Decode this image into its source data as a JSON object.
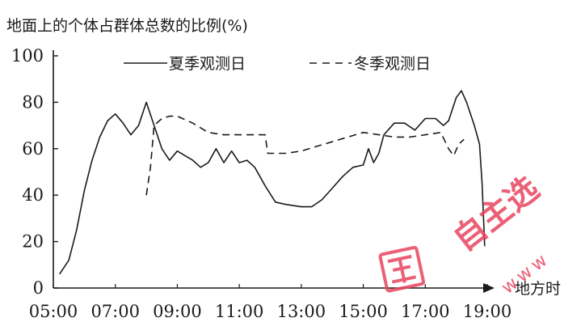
{
  "chart_data": {
    "type": "line",
    "ylabel": "地面上的个体占群体总数的比例(%)",
    "xlabel": "地方时",
    "ylim": [
      0,
      100
    ],
    "xlim": [
      "05:00",
      "19:00"
    ],
    "yticks": [
      "0",
      "20",
      "40",
      "60",
      "80",
      "100"
    ],
    "xticks": [
      "05:00",
      "07:00",
      "09:00",
      "11:00",
      "13:00",
      "15:00",
      "17:00",
      "19:00"
    ],
    "grid": false,
    "legend_position": "top",
    "series": [
      {
        "name": "夏季观测日",
        "style": "solid",
        "color": "#1a1a1a",
        "points": [
          [
            "05:12",
            6
          ],
          [
            "05:30",
            12
          ],
          [
            "05:45",
            25
          ],
          [
            "06:00",
            42
          ],
          [
            "06:15",
            55
          ],
          [
            "06:30",
            65
          ],
          [
            "06:45",
            72
          ],
          [
            "07:00",
            75
          ],
          [
            "07:15",
            71
          ],
          [
            "07:30",
            66
          ],
          [
            "07:45",
            70
          ],
          [
            "08:00",
            80
          ],
          [
            "08:15",
            70
          ],
          [
            "08:30",
            60
          ],
          [
            "08:45",
            55
          ],
          [
            "09:00",
            59
          ],
          [
            "09:15",
            57
          ],
          [
            "09:30",
            55
          ],
          [
            "09:45",
            52
          ],
          [
            "10:00",
            54
          ],
          [
            "10:15",
            60
          ],
          [
            "10:30",
            54
          ],
          [
            "10:45",
            59
          ],
          [
            "11:00",
            54
          ],
          [
            "11:15",
            55
          ],
          [
            "11:30",
            52
          ],
          [
            "11:50",
            44
          ],
          [
            "12:10",
            37
          ],
          [
            "12:30",
            36
          ],
          [
            "13:00",
            35
          ],
          [
            "13:20",
            35
          ],
          [
            "13:40",
            38
          ],
          [
            "14:00",
            43
          ],
          [
            "14:20",
            48
          ],
          [
            "14:40",
            52
          ],
          [
            "15:00",
            53
          ],
          [
            "15:10",
            60
          ],
          [
            "15:20",
            54
          ],
          [
            "15:30",
            58
          ],
          [
            "15:40",
            66
          ],
          [
            "16:00",
            71
          ],
          [
            "16:20",
            71
          ],
          [
            "16:40",
            68
          ],
          [
            "17:00",
            73
          ],
          [
            "17:20",
            73
          ],
          [
            "17:35",
            70
          ],
          [
            "17:45",
            72
          ],
          [
            "18:00",
            82
          ],
          [
            "18:10",
            85
          ],
          [
            "18:20",
            80
          ],
          [
            "18:35",
            70
          ],
          [
            "18:45",
            62
          ],
          [
            "18:50",
            45
          ],
          [
            "18:55",
            18
          ]
        ]
      },
      {
        "name": "冬季观测日",
        "style": "dashed",
        "color": "#1a1a1a",
        "points": [
          [
            "08:00",
            40
          ],
          [
            "08:08",
            52
          ],
          [
            "08:15",
            70
          ],
          [
            "08:30",
            73
          ],
          [
            "08:45",
            74
          ],
          [
            "09:00",
            74
          ],
          [
            "09:30",
            71
          ],
          [
            "10:00",
            67
          ],
          [
            "10:30",
            66
          ],
          [
            "11:00",
            66
          ],
          [
            "11:30",
            66
          ],
          [
            "11:50",
            66
          ],
          [
            "11:55",
            58
          ],
          [
            "12:30",
            58
          ],
          [
            "13:00",
            59
          ],
          [
            "13:30",
            61
          ],
          [
            "14:00",
            63
          ],
          [
            "14:30",
            65
          ],
          [
            "15:00",
            67
          ],
          [
            "15:30",
            66
          ],
          [
            "16:00",
            65
          ],
          [
            "16:30",
            65
          ],
          [
            "17:00",
            66
          ],
          [
            "17:30",
            67
          ],
          [
            "17:45",
            60
          ],
          [
            "17:55",
            57
          ],
          [
            "18:05",
            62
          ],
          [
            "18:15",
            64
          ]
        ]
      }
    ]
  },
  "colors": {
    "ink": "#1a1a1a",
    "watermark": "#e8455f"
  },
  "watermark": {
    "brand": "自主选",
    "url_text": "www"
  }
}
